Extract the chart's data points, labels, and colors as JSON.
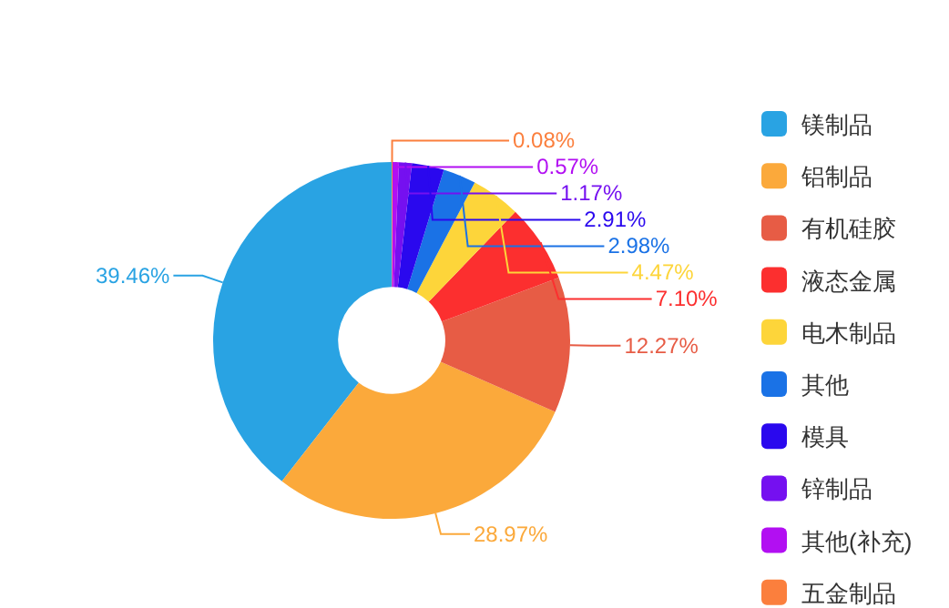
{
  "chart_data": {
    "type": "donut",
    "categories": [
      "镁制品",
      "铝制品",
      "有机硅胶",
      "液态金属",
      "电木制品",
      "其他",
      "模具",
      "锌制品",
      "其他(补充)",
      "五金制品"
    ],
    "values": [
      39.46,
      28.97,
      12.27,
      7.1,
      4.47,
      2.98,
      2.91,
      1.17,
      0.57,
      0.08
    ],
    "colors": [
      "#29a3e3",
      "#fba93b",
      "#e75c45",
      "#fc2f2f",
      "#fdd53a",
      "#1a72e6",
      "#2a08ee",
      "#7510f0",
      "#b20ff2",
      "#fb7f3d"
    ],
    "value_labels": [
      "39.46%",
      "28.97%",
      "12.27%",
      "7.10%",
      "4.47%",
      "2.98%",
      "2.91%",
      "1.17%",
      "0.57%",
      "0.08%"
    ],
    "legend": "right"
  }
}
